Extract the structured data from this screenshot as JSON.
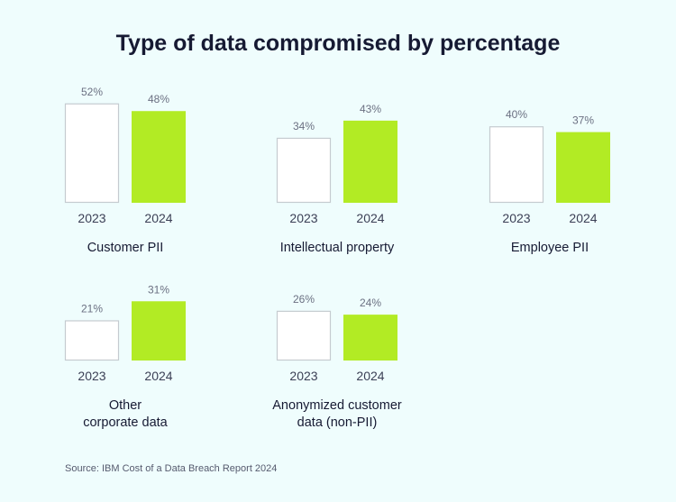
{
  "chart_data": {
    "type": "bar",
    "title": "Type of data compromised by percentage",
    "source": "Source: IBM Cost of a Data Breach Report 2024",
    "categories": [
      "2023",
      "2024"
    ],
    "colors": {
      "2023": "#ffffff",
      "2023_border": "#c5cbd0",
      "2024": "#b2eb24"
    },
    "groups": [
      {
        "name": [
          "Customer PII"
        ],
        "values": [
          52,
          48
        ],
        "labels": [
          "52%",
          "48%"
        ]
      },
      {
        "name": [
          "Intellectual property"
        ],
        "values": [
          34,
          43
        ],
        "labels": [
          "34%",
          "43%"
        ]
      },
      {
        "name": [
          "Employee PII"
        ],
        "values": [
          40,
          37
        ],
        "labels": [
          "40%",
          "37%"
        ]
      },
      {
        "name": [
          "Other",
          "corporate data"
        ],
        "values": [
          21,
          31
        ],
        "labels": [
          "21%",
          "31%"
        ]
      },
      {
        "name": [
          "Anonymized customer",
          "data (non-PII)"
        ],
        "values": [
          26,
          24
        ],
        "labels": [
          "26%",
          "24%"
        ]
      }
    ]
  }
}
